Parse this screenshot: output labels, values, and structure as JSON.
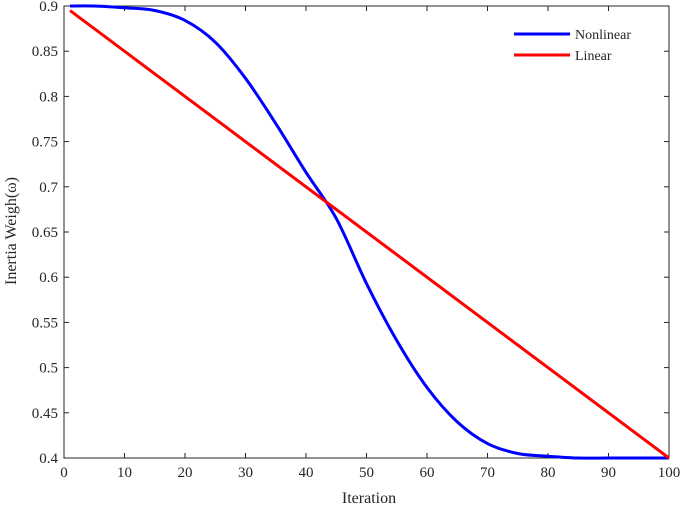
{
  "chart_data": {
    "type": "line",
    "xlabel": "Iteration",
    "ylabel": "Inertia Weigh(ω)",
    "xlim": [
      0,
      100
    ],
    "ylim": [
      0.4,
      0.9
    ],
    "xticks": [
      0,
      10,
      20,
      30,
      40,
      50,
      60,
      70,
      80,
      90,
      100
    ],
    "yticks": [
      0.4,
      0.45,
      0.5,
      0.55,
      0.6,
      0.65,
      0.7,
      0.75,
      0.8,
      0.85,
      0.9
    ],
    "xtick_labels": [
      "0",
      "10",
      "20",
      "30",
      "40",
      "50",
      "60",
      "70",
      "80",
      "90",
      "100"
    ],
    "ytick_labels": [
      "0.4",
      "0.45",
      "0.5",
      "0.55",
      "0.6",
      "0.65",
      "0.7",
      "0.75",
      "0.8",
      "0.85",
      "0.9"
    ],
    "grid": false,
    "legend_position": "top-right",
    "series": [
      {
        "name": "Nonlinear",
        "color": "#0000ff",
        "x": [
          1,
          5,
          10,
          15,
          20,
          25,
          30,
          35,
          40,
          45,
          50,
          55,
          60,
          65,
          70,
          75,
          80,
          85,
          90,
          95,
          100
        ],
        "y": [
          0.9,
          0.9,
          0.898,
          0.895,
          0.884,
          0.86,
          0.82,
          0.77,
          0.716,
          0.665,
          0.593,
          0.53,
          0.478,
          0.44,
          0.416,
          0.405,
          0.402,
          0.4,
          0.4,
          0.4,
          0.4
        ]
      },
      {
        "name": "Linear",
        "color": "#ff0000",
        "x": [
          1,
          100
        ],
        "y": [
          0.895,
          0.4
        ]
      }
    ]
  }
}
